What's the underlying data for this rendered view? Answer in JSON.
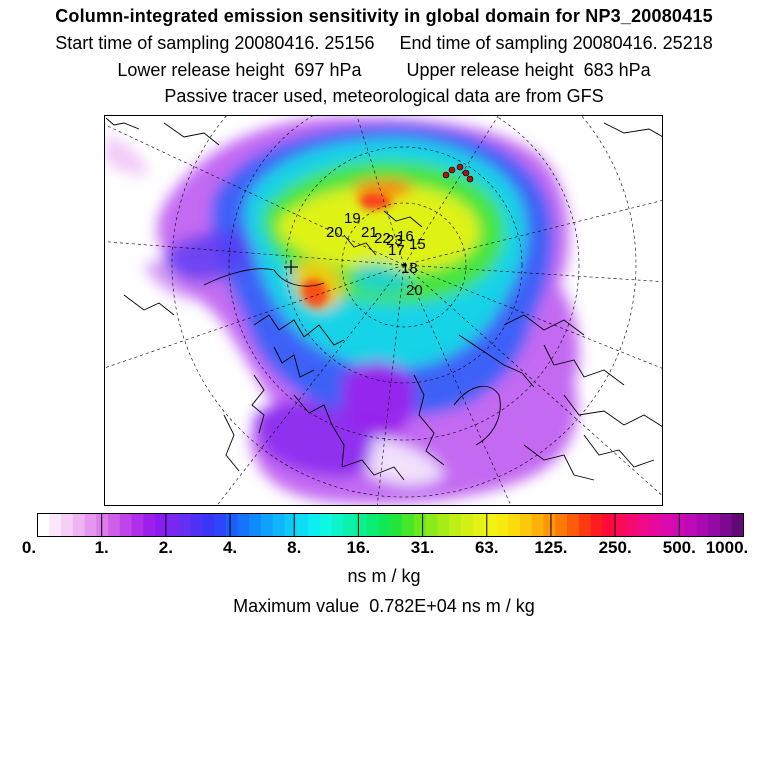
{
  "header": {
    "title": "Column-integrated emission sensitivity in global domain for NP3_20080415",
    "sampling_start_label": "Start time of sampling 20080416. 25156",
    "sampling_end_label": "End time of sampling 20080416. 25218",
    "lower_release_label": "Lower release height  697 hPa",
    "upper_release_label": "Upper release height  683 hPa",
    "tracer_note": "Passive tracer used, meteorological data are from GFS"
  },
  "map": {
    "projection": "north-polar-stereographic",
    "track_labels": [
      "19",
      "20",
      "17",
      "18",
      "20",
      "21",
      "22",
      "23",
      "16",
      "15"
    ]
  },
  "colorbar": {
    "tick_labels": [
      "0.",
      "1.",
      "2.",
      "4.",
      "8.",
      "16.",
      "31.",
      "63.",
      "125.",
      "250.",
      "500.",
      "1000."
    ],
    "colors": [
      "#ffffff",
      "#fbe6fb",
      "#f6cff6",
      "#efb5f2",
      "#e797ef",
      "#dc7cea",
      "#cf5fe8",
      "#c045e8",
      "#b02fe8",
      "#9b20ec",
      "#8a1cf0",
      "#7a28f0",
      "#6630f2",
      "#4f30f5",
      "#3a36f8",
      "#2c45fa",
      "#205cfa",
      "#1673fb",
      "#108afc",
      "#0ea2fc",
      "#10b6fb",
      "#0fcaf8",
      "#0edcf5",
      "#0deef2",
      "#0cf7e4",
      "#0cf4c8",
      "#0cf2ac",
      "#0cef90",
      "#0cec72",
      "#10e956",
      "#24e63a",
      "#48e628",
      "#6ae81c",
      "#8aeb18",
      "#a6ed18",
      "#bef017",
      "#d2f216",
      "#e4f315",
      "#f2f213",
      "#f8ea10",
      "#fcdc0c",
      "#fdc80a",
      "#feb008",
      "#fe9606",
      "#fe7a06",
      "#fe5c0a",
      "#fe3a12",
      "#fe1c1e",
      "#ff0a3a",
      "#fc0a56",
      "#f50a70",
      "#ee0a88",
      "#e60a9c",
      "#dc0aac",
      "#ce0ab4",
      "#be0ab8",
      "#aa0ab2",
      "#940aa4",
      "#7c0a90",
      "#620a74"
    ],
    "units": "ns m / kg",
    "max_value_label": "Maximum value  0.782E+04 ns m / kg"
  }
}
